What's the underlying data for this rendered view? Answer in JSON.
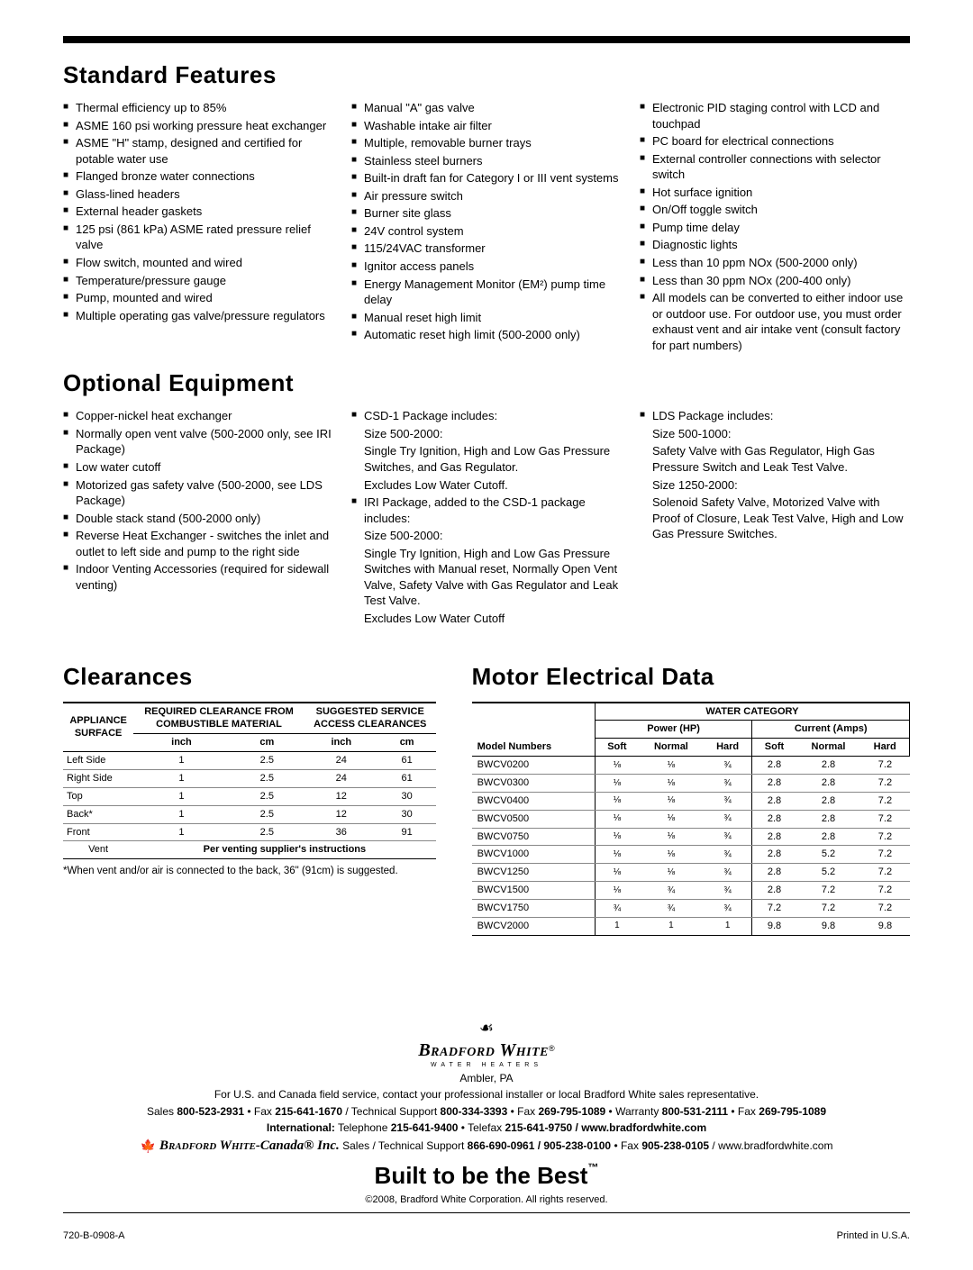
{
  "sections": {
    "standard": "Standard Features",
    "optional": "Optional Equipment",
    "clearances": "Clearances",
    "motor": "Motor Electrical Data"
  },
  "standard_features": {
    "col1": [
      "Thermal efficiency up to 85%",
      "ASME 160 psi working pressure heat exchanger",
      "ASME \"H\" stamp, designed and certified for potable water use",
      "Flanged bronze water connections",
      "Glass-lined headers",
      "External header gaskets",
      "125 psi (861 kPa) ASME rated pressure relief valve",
      "Flow switch, mounted and wired",
      "Temperature/pressure gauge",
      "Pump, mounted and wired",
      "Multiple operating gas valve/pressure regulators"
    ],
    "col2": [
      "Manual \"A\" gas valve",
      "Washable intake air filter",
      "Multiple, removable burner trays",
      "Stainless steel burners",
      "Built-in draft fan for Category I or III vent systems",
      "Air pressure switch",
      "Burner site glass",
      "24V control system",
      "115/24VAC transformer",
      "Ignitor access panels",
      "Energy Management Monitor (EM²) pump time delay",
      "Manual reset high limit",
      "Automatic reset high limit (500-2000 only)"
    ],
    "col3": [
      "Electronic PID staging control with LCD and touchpad",
      "PC board for electrical connections",
      "External controller connections with selector switch",
      "Hot surface ignition",
      "On/Off toggle switch",
      "Pump time delay",
      "Diagnostic lights",
      "Less than 10 ppm NOx (500-2000 only)",
      "Less than 30 ppm NOx (200-400 only)",
      "All models can be converted to either indoor use or outdoor use.  For outdoor use, you must order exhaust vent and air intake vent (consult factory for part numbers)"
    ]
  },
  "optional_equipment": {
    "col1": [
      "Copper-nickel heat exchanger",
      "Normally open vent valve (500-2000 only, see IRI Package)",
      "Low water cutoff",
      "Motorized gas safety valve (500-2000, see LDS Package)",
      "Double stack stand (500-2000 only)",
      "Reverse Heat Exchanger - switches the inlet and outlet to left side and pump to the right side",
      "Indoor Venting Accessories (required for sidewall venting)"
    ],
    "col2": [
      {
        "text": "CSD-1 Package includes:",
        "sub": [
          "Size 500-2000:",
          "Single Try Ignition, High and Low Gas Pressure Switches, and Gas Regulator.",
          "Excludes Low Water Cutoff."
        ]
      },
      {
        "text": "IRI Package, added to the CSD-1 package includes:",
        "sub": [
          "Size 500-2000:",
          "Single Try Ignition, High and Low Gas Pressure Switches with Manual reset, Normally Open Vent Valve, Safety Valve with Gas Regulator and Leak Test Valve.",
          "Excludes Low Water Cutoff"
        ]
      }
    ],
    "col3": [
      {
        "text": "LDS Package includes:",
        "sub": [
          "Size 500-1000:",
          "Safety Valve with Gas Regulator, High Gas Pressure Switch and Leak Test Valve.",
          "Size 1250-2000:",
          "Solenoid Safety Valve, Motorized Valve with Proof of Closure, Leak Test Valve, High and Low Gas Pressure Switches."
        ]
      }
    ]
  },
  "clearances": {
    "headers": {
      "surface_l1": "APPLIANCE",
      "surface_l2": "SURFACE",
      "req_l1": "REQUIRED CLEARANCE FROM",
      "req_l2": "COMBUSTIBLE MATERIAL",
      "sugg_l1": "SUGGESTED SERVICE",
      "sugg_l2": "ACCESS CLEARANCES",
      "inch": "inch",
      "cm": "cm"
    },
    "rows": [
      [
        "Left Side",
        "1",
        "2.5",
        "24",
        "61"
      ],
      [
        "Right Side",
        "1",
        "2.5",
        "24",
        "61"
      ],
      [
        "Top",
        "1",
        "2.5",
        "12",
        "30"
      ],
      [
        "Back*",
        "1",
        "2.5",
        "12",
        "30"
      ],
      [
        "Front",
        "1",
        "2.5",
        "36",
        "91"
      ]
    ],
    "vent_label": "Vent",
    "vent_text": "Per venting supplier's instructions",
    "note": "*When vent and/or air is connected to the back, 36\" (91cm) is suggested."
  },
  "motor": {
    "headers": {
      "water_cat": "WATER CATEGORY",
      "model": "Model Numbers",
      "power": "Power (HP)",
      "current": "Current (Amps)",
      "soft": "Soft",
      "normal": "Normal",
      "hard": "Hard"
    },
    "rows": [
      [
        "BWCV0200",
        "⅛",
        "⅛",
        "¾",
        "2.8",
        "2.8",
        "7.2"
      ],
      [
        "BWCV0300",
        "⅛",
        "⅛",
        "¾",
        "2.8",
        "2.8",
        "7.2"
      ],
      [
        "BWCV0400",
        "⅛",
        "⅛",
        "¾",
        "2.8",
        "2.8",
        "7.2"
      ],
      [
        "BWCV0500",
        "⅛",
        "⅛",
        "¾",
        "2.8",
        "2.8",
        "7.2"
      ],
      [
        "BWCV0750",
        "⅛",
        "⅛",
        "¾",
        "2.8",
        "2.8",
        "7.2"
      ],
      [
        "BWCV1000",
        "⅛",
        "⅛",
        "¾",
        "2.8",
        "5.2",
        "7.2"
      ],
      [
        "BWCV1250",
        "⅛",
        "⅛",
        "¾",
        "2.8",
        "5.2",
        "7.2"
      ],
      [
        "BWCV1500",
        "⅛",
        "¾",
        "¾",
        "2.8",
        "7.2",
        "7.2"
      ],
      [
        "BWCV1750",
        "¾",
        "¾",
        "¾",
        "7.2",
        "7.2",
        "7.2"
      ],
      [
        "BWCV2000",
        "1",
        "1",
        "1",
        "9.8",
        "9.8",
        "9.8"
      ]
    ]
  },
  "footer": {
    "brand": "Bradford White",
    "brandsub": "WATER HEATERS",
    "city": "Ambler, PA",
    "line1": "For U.S. and Canada field service, contact your professional installer or local Bradford White sales representative.",
    "line2_a": "Sales ",
    "line2_b": "800-523-2931",
    "line2_c": " • Fax ",
    "line2_d": "215-641-1670",
    "line2_e": " / Technical Support ",
    "line2_f": "800-334-3393",
    "line2_g": " • Fax ",
    "line2_h": "269-795-1089",
    "line2_i": " • Warranty ",
    "line2_j": "800-531-2111",
    "line2_k": " • Fax ",
    "line2_l": "269-795-1089",
    "line3_a": "International:",
    "line3_b": " Telephone ",
    "line3_c": "215-641-9400",
    "line3_d": " • Telefax ",
    "line3_e": "215-641-9750 / www.bradfordwhite.com",
    "canada_brand": "Bradford White",
    "canada_suffix": "-Canada® Inc.",
    "canada_rest": " Sales / Technical Support ",
    "canada_ph1": "866-690-0961 / 905-238-0100",
    "canada_fax": " • Fax ",
    "canada_ph2": "905-238-0105",
    "canada_end": " / www.bradfordwhite.com",
    "slogan": "Built to be the Best",
    "copyright": "©2008, Bradford White Corporation. All rights reserved.",
    "docnum": "720-B-0908-A",
    "printed": "Printed in U.S.A."
  }
}
